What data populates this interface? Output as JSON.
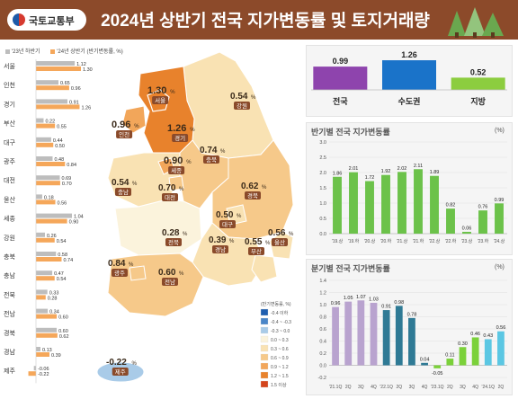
{
  "header": {
    "logo_text": "국토교통부",
    "title": "2024년 상반기 전국 지가변동률 및 토지거래량",
    "bg_color": "#8c4a2a"
  },
  "legend_top": {
    "prev_label": "'23년 하반기",
    "curr_label": "'24년 상반기 (반기변동률, %)",
    "prev_color": "#bdbdbd",
    "curr_color": "#f5a75a"
  },
  "regional_values": {
    "regions": [
      {
        "name": "서울",
        "prev": 1.12,
        "curr": 1.3
      },
      {
        "name": "인천",
        "prev": 0.65,
        "curr": 0.96
      },
      {
        "name": "경기",
        "prev": 0.91,
        "curr": 1.26
      },
      {
        "name": "부산",
        "prev": 0.22,
        "curr": 0.55
      },
      {
        "name": "대구",
        "prev": 0.44,
        "curr": 0.5
      },
      {
        "name": "광주",
        "prev": 0.48,
        "curr": 0.84
      },
      {
        "name": "대전",
        "prev": 0.69,
        "curr": 0.7
      },
      {
        "name": "울산",
        "prev": 0.18,
        "curr": 0.56
      },
      {
        "name": "세종",
        "prev": 1.04,
        "curr": 0.9
      },
      {
        "name": "강원",
        "prev": 0.26,
        "curr": 0.54
      },
      {
        "name": "충북",
        "prev": 0.58,
        "curr": 0.74
      },
      {
        "name": "충남",
        "prev": 0.47,
        "curr": 0.54
      },
      {
        "name": "전북",
        "prev": 0.33,
        "curr": 0.28
      },
      {
        "name": "전남",
        "prev": 0.34,
        "curr": 0.6
      },
      {
        "name": "경북",
        "prev": 0.6,
        "curr": 0.62
      },
      {
        "name": "경남",
        "prev": 0.13,
        "curr": 0.39
      },
      {
        "name": "제주",
        "prev": -0.06,
        "curr": -0.22
      }
    ]
  },
  "map": {
    "labels": [
      {
        "value": "1.30",
        "unit": "%",
        "region": "서울"
      },
      {
        "value": "0.54",
        "unit": "%",
        "region": "강원"
      },
      {
        "value": "0.96",
        "unit": "%",
        "region": "인천"
      },
      {
        "value": "1.26",
        "unit": "%",
        "region": "경기"
      },
      {
        "value": "0.74",
        "unit": "%",
        "region": "충북"
      },
      {
        "value": "0.90",
        "unit": "%",
        "region": "세종"
      },
      {
        "value": "0.54",
        "unit": "%",
        "region": "충남"
      },
      {
        "value": "0.70",
        "unit": "%",
        "region": "대전"
      },
      {
        "value": "0.62",
        "unit": "%",
        "region": "경북"
      },
      {
        "value": "0.50",
        "unit": "%",
        "region": "대구"
      },
      {
        "value": "0.28",
        "unit": "%",
        "region": "전북"
      },
      {
        "value": "0.56",
        "unit": "%",
        "region": "울산"
      },
      {
        "value": "0.39",
        "unit": "%",
        "region": "경남"
      },
      {
        "value": "0.55",
        "unit": "%",
        "region": "부산"
      },
      {
        "value": "0.84",
        "unit": "%",
        "region": "광주"
      },
      {
        "value": "0.60",
        "unit": "%",
        "region": "전남"
      },
      {
        "value": "-0.22",
        "unit": "%",
        "region": "제주"
      }
    ],
    "scale_title": "(반기변동률, %)",
    "scale": [
      {
        "label": "-0.4 이하",
        "color": "#1f5fb0"
      },
      {
        "label": "-0.4 ~ -0.3",
        "color": "#4a86c8"
      },
      {
        "label": "-0.3 ~ 0.0",
        "color": "#a9cbe8"
      },
      {
        "label": "0.0 ~ 0.3",
        "color": "#fbf3dc"
      },
      {
        "label": "0.3 ~ 0.6",
        "color": "#f9e2b3"
      },
      {
        "label": "0.6 ~ 0.9",
        "color": "#f6c98a"
      },
      {
        "label": "0.9 ~ 1.2",
        "color": "#f2a65a"
      },
      {
        "label": "1.2 ~ 1.5",
        "color": "#e8822c"
      },
      {
        "label": "1.5 이상",
        "color": "#d4451c"
      }
    ]
  },
  "summary": {
    "items": [
      {
        "name": "전국",
        "value": 0.99,
        "color": "#8e44ad"
      },
      {
        "name": "수도권",
        "value": 1.26,
        "color": "#1a73c9"
      },
      {
        "name": "지방",
        "value": 0.52,
        "color": "#8ccd3f"
      }
    ]
  },
  "half_chart": {
    "title": "반기별 전국 지가변동률",
    "unit": "(%)",
    "color": "#6cc24a",
    "ylim": [
      0,
      3.0
    ],
    "yticks": [
      "0.0",
      "0.5",
      "1.0",
      "1.5",
      "2.0",
      "2.5",
      "3.0"
    ],
    "categories": [
      "'19.상",
      "'19.하",
      "'20.상",
      "'20.하",
      "'21.상",
      "'21.하",
      "'22.상",
      "'22.하",
      "'23.상",
      "'23.하",
      "'24.상"
    ],
    "values": [
      1.86,
      2.01,
      1.72,
      1.92,
      2.02,
      2.11,
      1.89,
      0.82,
      0.06,
      0.76,
      0.99
    ],
    "value_labels": [
      "1.86",
      "2.01",
      "1.72",
      "1.92",
      "2.02",
      "2.11",
      "1.89",
      "0.82",
      "0.06",
      "0.76",
      "0.99"
    ]
  },
  "quarter_chart": {
    "title": "분기별 전국 지가변동률",
    "unit": "(%)",
    "ylim": [
      -0.2,
      1.4
    ],
    "yticks": [
      "-0.2",
      "0.0",
      "0.2",
      "0.4",
      "0.6",
      "0.8",
      "1.0",
      "1.2",
      "1.4"
    ],
    "categories": [
      "'21.1Q",
      "2Q",
      "3Q",
      "4Q",
      "'22.1Q",
      "2Q",
      "3Q",
      "4Q",
      "'23.1Q",
      "2Q",
      "3Q",
      "4Q",
      "'24.1Q",
      "2Q"
    ],
    "values": [
      0.96,
      1.05,
      1.07,
      1.03,
      0.91,
      0.98,
      0.78,
      0.04,
      -0.05,
      0.11,
      0.3,
      0.46,
      0.43,
      0.56
    ],
    "value_labels": [
      "0.96",
      "1.05",
      "1.07",
      "1.03",
      "0.91",
      "0.98",
      "0.78",
      "0.04",
      "-0.05",
      "0.11",
      "0.30",
      "0.46",
      "0.43",
      "0.56"
    ],
    "colors": [
      "#b9a3cf",
      "#b9a3cf",
      "#b9a3cf",
      "#b9a3cf",
      "#2f7a95",
      "#2f7a95",
      "#2f7a95",
      "#2f7a95",
      "#7bd13a",
      "#7bd13a",
      "#7bd13a",
      "#7bd13a",
      "#5bc7e3",
      "#5bc7e3"
    ]
  },
  "chart_data": [
    {
      "type": "bar",
      "categories": [
        "서울",
        "인천",
        "경기",
        "부산",
        "대구",
        "광주",
        "대전",
        "울산",
        "세종",
        "강원",
        "충북",
        "충남",
        "전북",
        "전남",
        "경북",
        "경남",
        "제주"
      ],
      "series": [
        {
          "name": "'23년 하반기",
          "values": [
            1.12,
            0.65,
            0.91,
            0.22,
            0.44,
            0.48,
            0.69,
            0.18,
            1.04,
            0.26,
            0.58,
            0.47,
            0.33,
            0.34,
            0.6,
            0.13,
            -0.06
          ]
        },
        {
          "name": "'24년 상반기",
          "values": [
            1.3,
            0.96,
            1.26,
            0.55,
            0.5,
            0.84,
            0.7,
            0.56,
            0.9,
            0.54,
            0.74,
            0.54,
            0.28,
            0.6,
            0.62,
            0.39,
            -0.22
          ]
        }
      ]
    },
    {
      "type": "bar",
      "categories": [
        "전국",
        "수도권",
        "지방"
      ],
      "values": [
        0.99,
        1.26,
        0.52
      ]
    },
    {
      "type": "bar",
      "title": "반기별 전국 지가변동률",
      "ylabel": "(%)",
      "categories": [
        "'19.상",
        "'19.하",
        "'20.상",
        "'20.하",
        "'21.상",
        "'21.하",
        "'22.상",
        "'22.하",
        "'23.상",
        "'23.하",
        "'24.상"
      ],
      "values": [
        1.86,
        2.01,
        1.72,
        1.92,
        2.02,
        2.11,
        1.89,
        0.82,
        0.06,
        0.76,
        0.99
      ],
      "ylim": [
        0,
        3.0
      ]
    },
    {
      "type": "bar",
      "title": "분기별 전국 지가변동률",
      "ylabel": "(%)",
      "categories": [
        "'21.1Q",
        "2Q",
        "3Q",
        "4Q",
        "'22.1Q",
        "2Q",
        "3Q",
        "4Q",
        "'23.1Q",
        "2Q",
        "3Q",
        "4Q",
        "'24.1Q",
        "2Q"
      ],
      "values": [
        0.96,
        1.05,
        1.07,
        1.03,
        0.91,
        0.98,
        0.78,
        0.04,
        -0.05,
        0.11,
        0.3,
        0.46,
        0.43,
        0.56
      ],
      "ylim": [
        -0.2,
        1.4
      ]
    }
  ]
}
